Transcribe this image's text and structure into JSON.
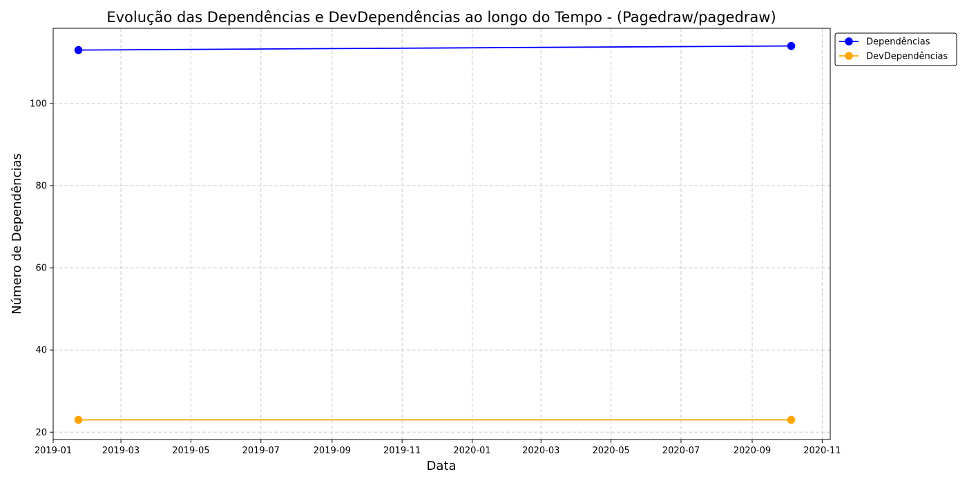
{
  "chart_data": {
    "type": "line",
    "title": "Evolução das Dependências e DevDependências ao longo do Tempo - (Pagedraw/pagedraw)",
    "xlabel": "Data",
    "ylabel": "Número de Dependências",
    "grid": true,
    "legend_position": "top-right-outside",
    "x_dates": [
      "2019-01-23",
      "2020-10-05"
    ],
    "xlim": [
      "2019-01-01",
      "2020-11-08"
    ],
    "ylim": [
      18.2,
      118.3
    ],
    "x_ticks": [
      {
        "date": "2019-01-01",
        "label": "2019-01"
      },
      {
        "date": "2019-03-01",
        "label": "2019-03"
      },
      {
        "date": "2019-05-01",
        "label": "2019-05"
      },
      {
        "date": "2019-07-01",
        "label": "2019-07"
      },
      {
        "date": "2019-09-01",
        "label": "2019-09"
      },
      {
        "date": "2019-11-01",
        "label": "2019-11"
      },
      {
        "date": "2020-01-01",
        "label": "2020-01"
      },
      {
        "date": "2020-03-01",
        "label": "2020-03"
      },
      {
        "date": "2020-05-01",
        "label": "2020-05"
      },
      {
        "date": "2020-07-01",
        "label": "2020-07"
      },
      {
        "date": "2020-09-01",
        "label": "2020-09"
      },
      {
        "date": "2020-11-01",
        "label": "2020-11"
      }
    ],
    "y_ticks": [
      {
        "value": 20,
        "label": "20"
      },
      {
        "value": 40,
        "label": "40"
      },
      {
        "value": 60,
        "label": "60"
      },
      {
        "value": 80,
        "label": "80"
      },
      {
        "value": 100,
        "label": "100"
      }
    ],
    "series": [
      {
        "name": "Dependências",
        "color": "#0000ff",
        "values": [
          113,
          114
        ]
      },
      {
        "name": "DevDependências",
        "color": "#ffa500",
        "values": [
          23,
          23
        ]
      }
    ]
  }
}
